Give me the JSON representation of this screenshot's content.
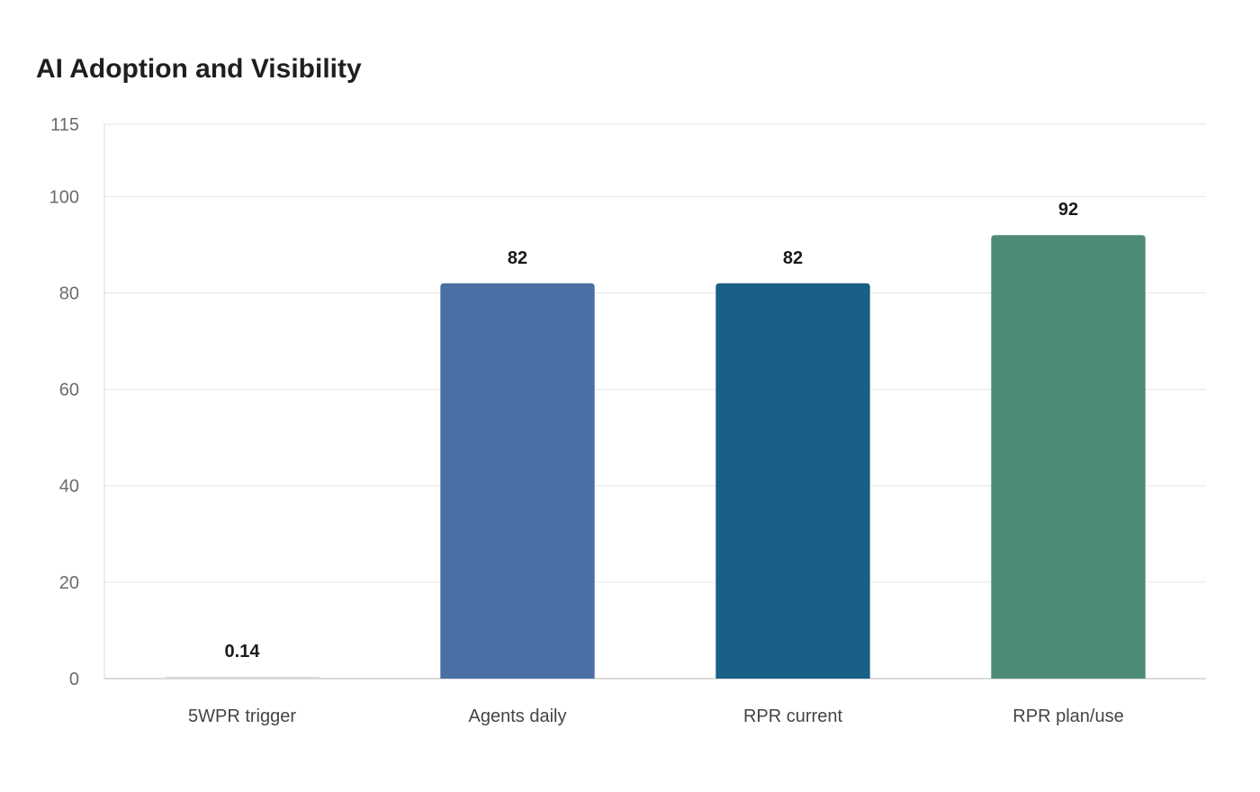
{
  "chart_data": {
    "type": "bar",
    "title": "AI Adoption and Visibility",
    "xlabel": "",
    "ylabel": "",
    "categories": [
      "5WPR trigger",
      "Agents daily",
      "RPR current",
      "RPR plan/use"
    ],
    "values": [
      0.14,
      82,
      82,
      92
    ],
    "value_labels": [
      "0.14",
      "82",
      "82",
      "92"
    ],
    "colors": [
      "#d9d9d9",
      "#4a6fa5",
      "#1a5f86",
      "#4e8b79"
    ],
    "ylim": [
      0,
      115
    ],
    "yticks": [
      0,
      20,
      40,
      60,
      80,
      100,
      115
    ],
    "grid": true,
    "legend": "none"
  }
}
